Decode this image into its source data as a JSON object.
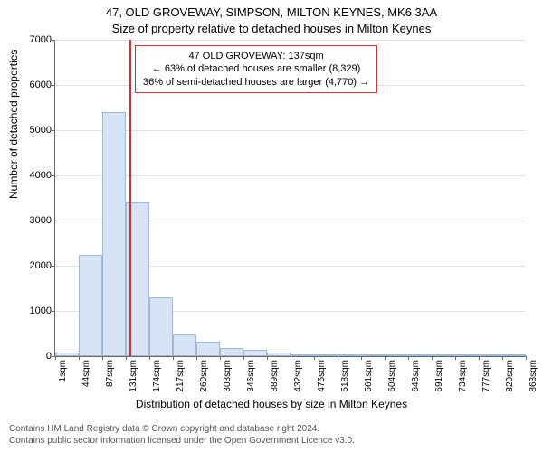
{
  "title_main": "47, OLD GROVEWAY, SIMPSON, MILTON KEYNES, MK6 3AA",
  "title_sub": "Size of property relative to detached houses in Milton Keynes",
  "y_axis_label": "Number of detached properties",
  "x_axis_label": "Distribution of detached houses by size in Milton Keynes",
  "chart": {
    "type": "histogram",
    "ylim": [
      0,
      7000
    ],
    "ytick_step": 1000,
    "x_ticks": [
      "1sqm",
      "44sqm",
      "87sqm",
      "131sqm",
      "174sqm",
      "217sqm",
      "260sqm",
      "303sqm",
      "346sqm",
      "389sqm",
      "432sqm",
      "475sqm",
      "518sqm",
      "561sqm",
      "604sqm",
      "648sqm",
      "691sqm",
      "734sqm",
      "777sqm",
      "820sqm",
      "863sqm"
    ],
    "values": [
      90,
      2250,
      5400,
      3400,
      1300,
      480,
      330,
      180,
      150,
      90,
      40,
      30,
      20,
      20,
      15,
      15,
      10,
      10,
      8,
      5
    ],
    "bar_fill": "#d6e4f5",
    "bar_stroke": "#9db8d9",
    "background_color": "#ffffff",
    "grid_color": "#e0e0e0",
    "axis_color": "#666666",
    "tick_fontsize": 11,
    "label_fontsize": 12,
    "title_fontsize": 13,
    "bar_width_ratio": 1.0
  },
  "marker": {
    "value_sqm": 137,
    "color": "#d93030",
    "line_width": 2
  },
  "annotation": {
    "lines": [
      "47 OLD GROVEWAY: 137sqm",
      "← 63% of detached houses are smaller (8,329)",
      "36% of semi-detached houses are larger (4,770) →"
    ],
    "border_color": "#d93030",
    "background": "#ffffff",
    "fontsize": 11
  },
  "footer": {
    "line1": "Contains HM Land Registry data © Crown copyright and database right 2024.",
    "line2": "Contains public sector information licensed under the Open Government Licence v3.0."
  }
}
